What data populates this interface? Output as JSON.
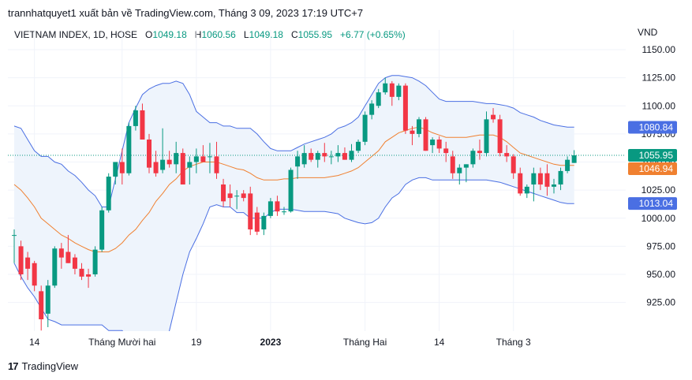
{
  "header": {
    "publisher_line": "trannhatquyet1 xuất bản về TradingView.com, Tháng 3 09, 2023 17:19 UTC+7"
  },
  "legend": {
    "symbol": "VIETNAM INDEX, 1D, HOSE",
    "o_label": "O",
    "o_value": "1049.18",
    "h_label": "H",
    "h_value": "1060.56",
    "l_label": "L",
    "l_value": "1049.18",
    "c_label": "C",
    "c_value": "1055.95",
    "change": "+6.77 (+0.65%)"
  },
  "currency": "VND",
  "footer": {
    "brand": "TradingView",
    "logo_mark": "17"
  },
  "colors": {
    "up": "#089981",
    "down": "#f23645",
    "band": "#4a6fe3",
    "basis": "#f08030",
    "band_fill": "#eef4fc",
    "grid": "#f0f3fa"
  },
  "chart_data": {
    "type": "candlestick",
    "title": "VIETNAM INDEX, 1D, HOSE",
    "xlabel": "",
    "ylabel": "",
    "ylim": [
      895,
      1165
    ],
    "y_ticks": [
      "1150.00",
      "1125.00",
      "1100.00",
      "1075.00",
      "1050.00",
      "1025.00",
      "1000.00",
      "975.00",
      "950.00",
      "925.00"
    ],
    "x_ticks": [
      {
        "label": "14",
        "i": 3
      },
      {
        "label": "Tháng Mười hai",
        "i": 16
      },
      {
        "label": "19",
        "i": 27
      },
      {
        "label": "2023",
        "i": 38
      },
      {
        "label": "Tháng Hai",
        "i": 52
      },
      {
        "label": "14",
        "i": 63
      },
      {
        "label": "Tháng 3",
        "i": 74
      }
    ],
    "price_labels": [
      {
        "text": "1080.84",
        "value": 1080.84,
        "color": "#4a6fe3"
      },
      {
        "text": "1055.95",
        "value": 1055.95,
        "color": "#089981"
      },
      {
        "text": "1046.94",
        "value": 1046.94,
        "color": "#f08030"
      },
      {
        "text": "1013.04",
        "value": 1013.04,
        "color": "#4a6fe3"
      }
    ],
    "last_price": 1055.95,
    "candles": [
      {
        "o": 985,
        "h": 990,
        "l": 960,
        "c": 985
      },
      {
        "o": 975,
        "h": 980,
        "l": 945,
        "c": 950
      },
      {
        "o": 965,
        "h": 970,
        "l": 945,
        "c": 955
      },
      {
        "o": 960,
        "h": 962,
        "l": 935,
        "c": 940
      },
      {
        "o": 935,
        "h": 940,
        "l": 900,
        "c": 910
      },
      {
        "o": 915,
        "h": 945,
        "l": 903,
        "c": 940
      },
      {
        "o": 940,
        "h": 975,
        "l": 938,
        "c": 973
      },
      {
        "o": 973,
        "h": 978,
        "l": 955,
        "c": 965
      },
      {
        "o": 970,
        "h": 985,
        "l": 960,
        "c": 960
      },
      {
        "o": 965,
        "h": 968,
        "l": 950,
        "c": 955
      },
      {
        "o": 955,
        "h": 960,
        "l": 945,
        "c": 948
      },
      {
        "o": 950,
        "h": 955,
        "l": 938,
        "c": 948
      },
      {
        "o": 950,
        "h": 975,
        "l": 948,
        "c": 972
      },
      {
        "o": 972,
        "h": 1010,
        "l": 970,
        "c": 1007
      },
      {
        "o": 1007,
        "h": 1040,
        "l": 1005,
        "c": 1037
      },
      {
        "o": 1037,
        "h": 1050,
        "l": 1030,
        "c": 1050
      },
      {
        "o": 1050,
        "h": 1062,
        "l": 1030,
        "c": 1040
      },
      {
        "o": 1040,
        "h": 1085,
        "l": 1038,
        "c": 1082
      },
      {
        "o": 1082,
        "h": 1100,
        "l": 1078,
        "c": 1096
      },
      {
        "o": 1096,
        "h": 1102,
        "l": 1070,
        "c": 1070
      },
      {
        "o": 1070,
        "h": 1075,
        "l": 1040,
        "c": 1045
      },
      {
        "o": 1050,
        "h": 1060,
        "l": 1037,
        "c": 1040
      },
      {
        "o": 1043,
        "h": 1080,
        "l": 1040,
        "c": 1052
      },
      {
        "o": 1052,
        "h": 1060,
        "l": 1045,
        "c": 1048
      },
      {
        "o": 1048,
        "h": 1068,
        "l": 1040,
        "c": 1058
      },
      {
        "o": 1058,
        "h": 1062,
        "l": 1030,
        "c": 1030
      },
      {
        "o": 1045,
        "h": 1055,
        "l": 1030,
        "c": 1050
      },
      {
        "o": 1050,
        "h": 1062,
        "l": 1040,
        "c": 1055
      },
      {
        "o": 1055,
        "h": 1065,
        "l": 1050,
        "c": 1050
      },
      {
        "o": 1055,
        "h": 1067,
        "l": 1040,
        "c": 1055
      },
      {
        "o": 1055,
        "h": 1068,
        "l": 1035,
        "c": 1040
      },
      {
        "o": 1030,
        "h": 1035,
        "l": 1010,
        "c": 1015
      },
      {
        "o": 1022,
        "h": 1030,
        "l": 1010,
        "c": 1018
      },
      {
        "o": 1020,
        "h": 1025,
        "l": 1008,
        "c": 1020
      },
      {
        "o": 1022,
        "h": 1025,
        "l": 1015,
        "c": 1018
      },
      {
        "o": 1022,
        "h": 1028,
        "l": 985,
        "c": 990
      },
      {
        "o": 1005,
        "h": 1010,
        "l": 985,
        "c": 988
      },
      {
        "o": 990,
        "h": 1005,
        "l": 985,
        "c": 1002
      },
      {
        "o": 1002,
        "h": 1018,
        "l": 1000,
        "c": 1015
      },
      {
        "o": 1015,
        "h": 1020,
        "l": 1002,
        "c": 1006
      },
      {
        "o": 1006,
        "h": 1010,
        "l": 1003,
        "c": 1006
      },
      {
        "o": 1006,
        "h": 1045,
        "l": 1005,
        "c": 1043
      },
      {
        "o": 1046,
        "h": 1060,
        "l": 1035,
        "c": 1055
      },
      {
        "o": 1048,
        "h": 1065,
        "l": 1045,
        "c": 1058
      },
      {
        "o": 1058,
        "h": 1062,
        "l": 1050,
        "c": 1052
      },
      {
        "o": 1052,
        "h": 1060,
        "l": 1045,
        "c": 1058
      },
      {
        "o": 1058,
        "h": 1067,
        "l": 1050,
        "c": 1055
      },
      {
        "o": 1055,
        "h": 1060,
        "l": 1048,
        "c": 1055
      },
      {
        "o": 1055,
        "h": 1065,
        "l": 1050,
        "c": 1058
      },
      {
        "o": 1058,
        "h": 1063,
        "l": 1052,
        "c": 1052
      },
      {
        "o": 1052,
        "h": 1066,
        "l": 1050,
        "c": 1060
      },
      {
        "o": 1060,
        "h": 1070,
        "l": 1058,
        "c": 1068
      },
      {
        "o": 1068,
        "h": 1095,
        "l": 1065,
        "c": 1092
      },
      {
        "o": 1092,
        "h": 1105,
        "l": 1088,
        "c": 1102
      },
      {
        "o": 1100,
        "h": 1115,
        "l": 1098,
        "c": 1112
      },
      {
        "o": 1112,
        "h": 1125,
        "l": 1110,
        "c": 1120
      },
      {
        "o": 1120,
        "h": 1122,
        "l": 1100,
        "c": 1108
      },
      {
        "o": 1108,
        "h": 1120,
        "l": 1105,
        "c": 1118
      },
      {
        "o": 1118,
        "h": 1120,
        "l": 1075,
        "c": 1078
      },
      {
        "o": 1078,
        "h": 1082,
        "l": 1065,
        "c": 1075
      },
      {
        "o": 1075,
        "h": 1090,
        "l": 1072,
        "c": 1088
      },
      {
        "o": 1088,
        "h": 1090,
        "l": 1060,
        "c": 1060
      },
      {
        "o": 1065,
        "h": 1072,
        "l": 1058,
        "c": 1070
      },
      {
        "o": 1070,
        "h": 1073,
        "l": 1058,
        "c": 1062
      },
      {
        "o": 1062,
        "h": 1068,
        "l": 1050,
        "c": 1058
      },
      {
        "o": 1055,
        "h": 1060,
        "l": 1035,
        "c": 1040
      },
      {
        "o": 1040,
        "h": 1048,
        "l": 1030,
        "c": 1045
      },
      {
        "o": 1045,
        "h": 1048,
        "l": 1032,
        "c": 1048
      },
      {
        "o": 1048,
        "h": 1062,
        "l": 1045,
        "c": 1060
      },
      {
        "o": 1060,
        "h": 1070,
        "l": 1052,
        "c": 1058
      },
      {
        "o": 1058,
        "h": 1095,
        "l": 1055,
        "c": 1088
      },
      {
        "o": 1092,
        "h": 1098,
        "l": 1085,
        "c": 1088
      },
      {
        "o": 1088,
        "h": 1092,
        "l": 1055,
        "c": 1058
      },
      {
        "o": 1058,
        "h": 1065,
        "l": 1050,
        "c": 1055
      },
      {
        "o": 1055,
        "h": 1057,
        "l": 1035,
        "c": 1040
      },
      {
        "o": 1040,
        "h": 1045,
        "l": 1020,
        "c": 1022
      },
      {
        "o": 1022,
        "h": 1030,
        "l": 1018,
        "c": 1028
      },
      {
        "o": 1030,
        "h": 1045,
        "l": 1015,
        "c": 1040
      },
      {
        "o": 1040,
        "h": 1045,
        "l": 1025,
        "c": 1030
      },
      {
        "o": 1040,
        "h": 1048,
        "l": 1020,
        "c": 1028
      },
      {
        "o": 1028,
        "h": 1035,
        "l": 1022,
        "c": 1030
      },
      {
        "o": 1030,
        "h": 1045,
        "l": 1025,
        "c": 1042
      },
      {
        "o": 1042,
        "h": 1055,
        "l": 1040,
        "c": 1052
      },
      {
        "o": 1049.18,
        "h": 1060.56,
        "l": 1049.18,
        "c": 1055.95
      }
    ],
    "upper_band": [
      1082,
      1080,
      1070,
      1060,
      1055,
      1055,
      1050,
      1048,
      1042,
      1038,
      1032,
      1025,
      1020,
      1010,
      1010,
      1035,
      1060,
      1085,
      1098,
      1110,
      1115,
      1118,
      1120,
      1120,
      1122,
      1120,
      1110,
      1095,
      1090,
      1085,
      1085,
      1082,
      1082,
      1080,
      1080,
      1080,
      1075,
      1068,
      1062,
      1060,
      1060,
      1060,
      1063,
      1066,
      1068,
      1070,
      1072,
      1075,
      1080,
      1082,
      1085,
      1090,
      1100,
      1110,
      1120,
      1125,
      1127,
      1127,
      1126,
      1125,
      1122,
      1118,
      1112,
      1106,
      1104,
      1104,
      1104,
      1104,
      1104,
      1103,
      1102,
      1102,
      1101,
      1100,
      1098,
      1094,
      1092,
      1090,
      1087,
      1085,
      1083,
      1082,
      1081,
      1081
    ],
    "middle_band": [
      1030,
      1025,
      1018,
      1010,
      1000,
      995,
      990,
      985,
      982,
      978,
      975,
      972,
      970,
      970,
      970,
      973,
      978,
      985,
      990,
      998,
      1005,
      1015,
      1022,
      1030,
      1035,
      1042,
      1046,
      1048,
      1050,
      1050,
      1050,
      1048,
      1046,
      1044,
      1043,
      1040,
      1036,
      1034,
      1034,
      1034,
      1035,
      1035,
      1036,
      1036,
      1036,
      1036,
      1036,
      1037,
      1038,
      1040,
      1042,
      1045,
      1050,
      1055,
      1060,
      1068,
      1072,
      1076,
      1078,
      1080,
      1081,
      1079,
      1076,
      1074,
      1072,
      1072,
      1072,
      1072,
      1073,
      1074,
      1074,
      1074,
      1072,
      1068,
      1063,
      1058,
      1056,
      1054,
      1052,
      1050,
      1048,
      1047,
      1047,
      1047
    ],
    "lower_band": [
      960,
      948,
      938,
      930,
      920,
      910,
      908,
      905,
      905,
      905,
      905,
      905,
      905,
      905,
      900,
      900,
      900,
      893,
      885,
      885,
      885,
      885,
      885,
      900,
      925,
      950,
      970,
      982,
      995,
      1010,
      1012,
      1010,
      1010,
      1005,
      1005,
      1000,
      1000,
      1000,
      1005,
      1008,
      1008,
      1008,
      1007,
      1006,
      1006,
      1006,
      1006,
      1005,
      1004,
      1000,
      998,
      996,
      995,
      996,
      1000,
      1010,
      1018,
      1022,
      1030,
      1034,
      1036,
      1036,
      1034,
      1034,
      1034,
      1034,
      1034,
      1034,
      1034,
      1034,
      1034,
      1033,
      1032,
      1030,
      1028,
      1026,
      1024,
      1022,
      1020,
      1018,
      1016,
      1014,
      1013,
      1013.04
    ]
  }
}
